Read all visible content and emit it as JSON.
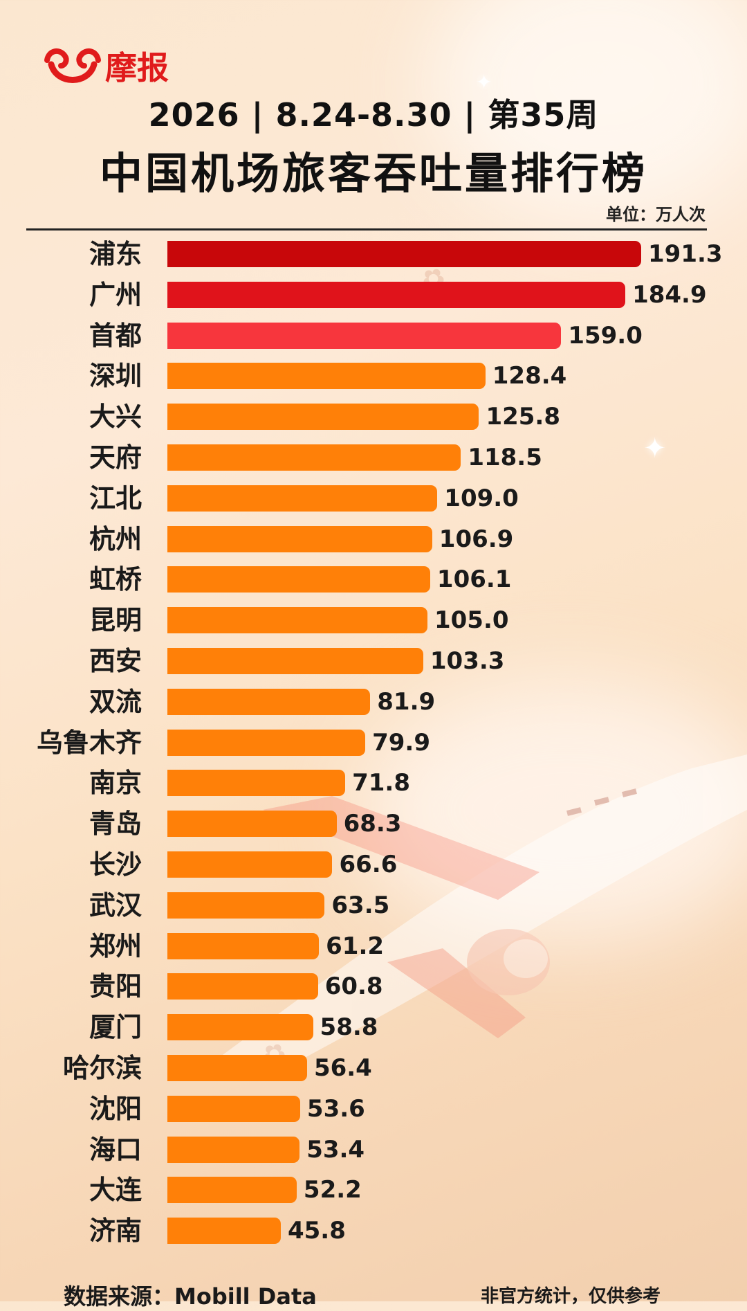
{
  "brand": {
    "name": "摩报",
    "icon": "smile-logo-icon"
  },
  "header": {
    "subtitle": "2026 | 8.24-8.30 | 第35周",
    "title": "中国机场旅客吞吐量排行榜",
    "unit": "单位：万人次"
  },
  "colors": {
    "top1": "#c8070a",
    "top2": "#e0131b",
    "top3": "#f7363d",
    "rest": "#ff8008"
  },
  "chart_data": {
    "type": "bar",
    "orientation": "horizontal",
    "title": "中国机场旅客吞吐量排行榜",
    "unit": "万人次",
    "categories": [
      "浦东",
      "广州",
      "首都",
      "深圳",
      "大兴",
      "天府",
      "江北",
      "杭州",
      "虹桥",
      "昆明",
      "西安",
      "双流",
      "乌鲁木齐",
      "南京",
      "青岛",
      "长沙",
      "武汉",
      "郑州",
      "贵阳",
      "厦门",
      "哈尔滨",
      "沈阳",
      "海口",
      "大连",
      "济南"
    ],
    "values": [
      191.3,
      184.9,
      159.0,
      128.4,
      125.8,
      118.5,
      109.0,
      106.9,
      106.1,
      105.0,
      103.3,
      81.9,
      79.9,
      71.8,
      68.3,
      66.6,
      63.5,
      61.2,
      60.8,
      58.8,
      56.4,
      53.6,
      53.4,
      52.2,
      45.8
    ],
    "value_labels": [
      "191.3",
      "184.9",
      "159.0",
      "128.4",
      "125.8",
      "118.5",
      "109.0",
      "106.9",
      "106.1",
      "105.0",
      "103.3",
      "81.9",
      "79.9",
      "71.8",
      "68.3",
      "66.6",
      "63.5",
      "61.2",
      "60.8",
      "58.8",
      "56.4",
      "53.6",
      "53.4",
      "52.2",
      "45.8"
    ],
    "xlim": [
      0,
      191.3
    ],
    "grid": false,
    "legend": "none"
  },
  "footer": {
    "source": "数据来源：Mobill Data",
    "note": "非官方统计，仅供参考"
  }
}
